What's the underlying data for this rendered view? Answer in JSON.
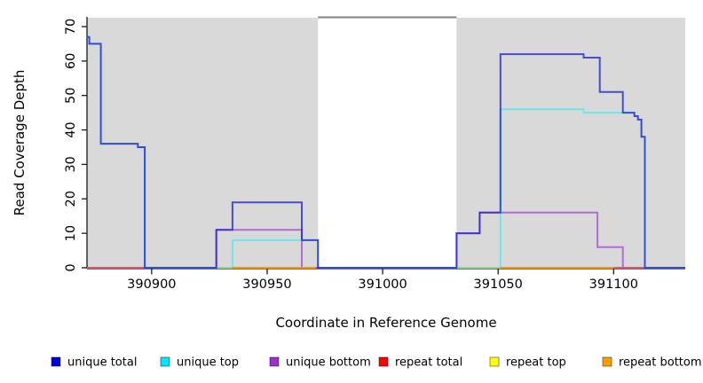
{
  "chart_data": {
    "type": "line",
    "subtype": "step-coverage",
    "title": "",
    "xlabel": "Coordinate in Reference Genome",
    "ylabel": "Read Coverage Depth",
    "xlim": [
      390872,
      391131
    ],
    "ylim": [
      0,
      72.5
    ],
    "x_ticks": [
      390900,
      390950,
      391000,
      391050,
      391100
    ],
    "y_ticks": [
      0,
      10,
      20,
      30,
      40,
      50,
      60,
      70
    ],
    "grid": false,
    "legend_position": "bottom",
    "background_color": "#ffffff",
    "shaded_regions": {
      "color": "#d9d9d9",
      "ranges": [
        [
          390872,
          390972
        ],
        [
          391032,
          391131
        ]
      ]
    },
    "gap_top_border": {
      "range": [
        390972,
        391032
      ],
      "color": "#808080"
    },
    "draw_order": [
      "unique bottom",
      "unique top",
      "repeat top",
      "repeat bottom",
      "repeat total",
      "unique total"
    ],
    "series": [
      {
        "label": "unique total",
        "legend_color": "#0000dd",
        "plot_color": "#2328d2",
        "plot_opacity": 0.8,
        "segments": [
          [
            [
              390872,
              67
            ],
            [
              390873,
              65
            ],
            [
              390878,
              36
            ],
            [
              390894,
              35
            ],
            [
              390897,
              0
            ],
            [
              390928,
              11
            ],
            [
              390935,
              19
            ],
            [
              390965,
              8
            ],
            [
              390972,
              0
            ],
            [
              391032,
              10
            ],
            [
              391042,
              16
            ],
            [
              391051,
              62
            ],
            [
              391087,
              61
            ],
            [
              391094,
              51
            ],
            [
              391104,
              45
            ],
            [
              391109,
              44
            ],
            [
              391110.5,
              43
            ],
            [
              391112,
              38
            ],
            [
              391113.5,
              0
            ],
            [
              391131,
              0
            ]
          ]
        ]
      },
      {
        "label": "unique top",
        "legend_color": "#00e5ff",
        "plot_color": "#63e6ee",
        "plot_opacity": 0.9,
        "segments": [
          [
            [
              390872,
              67
            ],
            [
              390873,
              65
            ],
            [
              390878,
              36
            ],
            [
              390894,
              35
            ],
            [
              390897,
              0
            ],
            [
              390935,
              8
            ],
            [
              390972,
              0
            ],
            [
              391051,
              46
            ],
            [
              391087,
              45
            ],
            [
              391109,
              44
            ],
            [
              391110.5,
              43
            ],
            [
              391112,
              38
            ],
            [
              391113.5,
              0
            ],
            [
              391131,
              0
            ]
          ]
        ]
      },
      {
        "label": "unique bottom",
        "legend_color": "#9932cc",
        "plot_color": "#a958d6",
        "plot_opacity": 0.85,
        "segments": [
          [
            [
              390872,
              0
            ],
            [
              390928,
              11
            ],
            [
              390965,
              0
            ],
            [
              391032,
              10
            ],
            [
              391042,
              16
            ],
            [
              391093,
              6
            ],
            [
              391104,
              0
            ],
            [
              391131,
              0
            ]
          ]
        ]
      },
      {
        "label": "repeat total",
        "legend_color": "#ff0000",
        "plot_color": "#e4506e",
        "plot_opacity": 0.95,
        "segments": [
          [
            [
              390872,
              0
            ],
            [
              390897,
              0
            ]
          ],
          [
            [
              390971,
              0
            ],
            [
              390972.5,
              0
            ]
          ],
          [
            [
              391100,
              0
            ],
            [
              391113,
              0
            ]
          ]
        ]
      },
      {
        "label": "repeat top",
        "legend_color": "#ffff00",
        "plot_color": "#8fd88f",
        "plot_opacity": 1,
        "segments": [
          [
            [
              390928,
              0
            ],
            [
              390935,
              0
            ]
          ],
          [
            [
              391032,
              0
            ],
            [
              391051,
              0
            ]
          ]
        ]
      },
      {
        "label": "repeat bottom",
        "legend_color": "#ff9d00",
        "plot_color": "#ff9500",
        "plot_opacity": 1,
        "segments": [
          [
            [
              390935,
              0
            ],
            [
              390971,
              0
            ]
          ],
          [
            [
              391051,
              0
            ],
            [
              391100,
              0
            ]
          ]
        ]
      }
    ]
  }
}
